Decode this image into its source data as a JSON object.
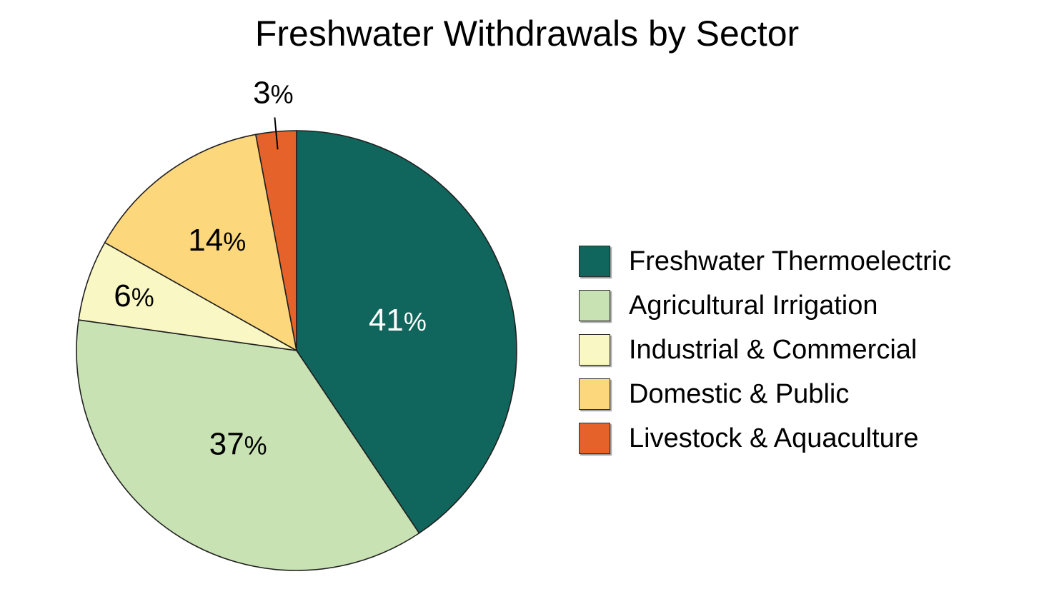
{
  "chart_data": {
    "type": "pie",
    "title": "Freshwater Withdrawals by Sector",
    "percent_suffix": "%",
    "legend_position": "right",
    "slices": [
      {
        "name": "Freshwater Thermoelectric",
        "value": 41,
        "label": "41",
        "color": "#10665c",
        "label_color": "#ffffff"
      },
      {
        "name": "Agricultural Irrigation",
        "value": 37,
        "label": "37",
        "color": "#c9e2b4",
        "label_color": "#000000"
      },
      {
        "name": "Industrial & Commercial",
        "value": 6,
        "label": "6",
        "color": "#f9f7c3",
        "label_color": "#000000"
      },
      {
        "name": "Domestic & Public",
        "value": 14,
        "label": "14",
        "color": "#fdd77c",
        "label_color": "#000000"
      },
      {
        "name": "Livestock & Aquaculture",
        "value": 3,
        "label": "3",
        "color": "#e5632a",
        "label_color": "#000000"
      }
    ]
  }
}
